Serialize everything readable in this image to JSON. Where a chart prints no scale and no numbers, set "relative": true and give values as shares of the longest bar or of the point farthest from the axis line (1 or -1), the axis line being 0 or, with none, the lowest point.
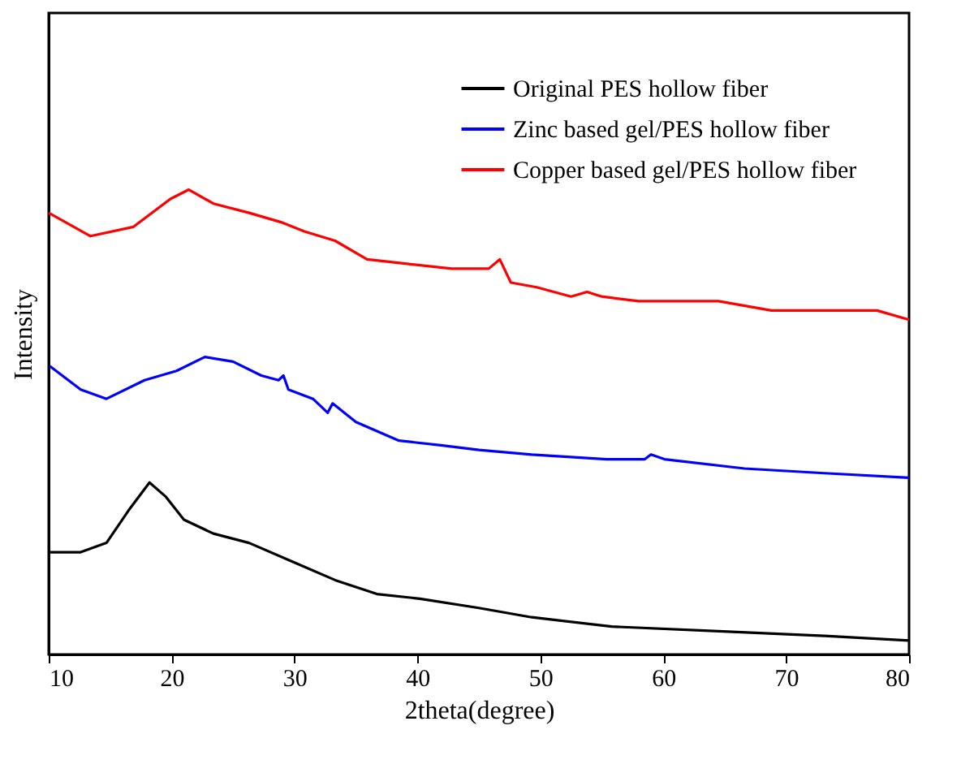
{
  "chart_data": {
    "type": "line",
    "xlabel": "2theta(degree)",
    "ylabel": "Intensity",
    "relative": true,
    "xlim": [
      10,
      80
    ],
    "xticks": [
      10,
      20,
      30,
      40,
      50,
      60,
      70,
      80
    ],
    "legend": "top right",
    "line_style": "solid",
    "series": [
      {
        "name": "Original PES hollow fiber",
        "color": "#000000",
        "x": [
          10.1,
          12.6,
          14.7,
          16.5,
          18.2,
          19.5,
          21,
          23.4,
          26.3,
          29.8,
          33.3,
          36.7,
          40.2,
          45,
          49.3,
          55.8,
          64.5,
          73.1,
          80
        ],
        "values": [
          0.22,
          0.22,
          0.24,
          0.31,
          0.37,
          0.34,
          0.29,
          0.26,
          0.24,
          0.2,
          0.16,
          0.13,
          0.12,
          0.1,
          0.08,
          0.06,
          0.05,
          0.04,
          0.03
        ]
      },
      {
        "name": "Zinc based gel/PES hollow fiber",
        "color": "#0000ff",
        "x": [
          10.1,
          12.6,
          14.7,
          17.8,
          20.4,
          22.7,
          25,
          27.3,
          28.7,
          29.1,
          29.5,
          31.5,
          32.7,
          33.1,
          35,
          38.5,
          41.9,
          45,
          49.3,
          55.4,
          58.5,
          59,
          60.1,
          66.6,
          73.1,
          80
        ],
        "values": [
          0.62,
          0.57,
          0.55,
          0.59,
          0.61,
          0.64,
          0.63,
          0.6,
          0.59,
          0.6,
          0.57,
          0.55,
          0.52,
          0.54,
          0.5,
          0.46,
          0.45,
          0.44,
          0.43,
          0.42,
          0.42,
          0.43,
          0.42,
          0.4,
          0.39,
          0.38
        ]
      },
      {
        "name": "Copper based gel/PES hollow fiber",
        "color": "#ff0000",
        "x": [
          10,
          13.4,
          16.9,
          19.9,
          21.4,
          23.4,
          26.3,
          28.9,
          30.8,
          33.3,
          35.9,
          39.3,
          42.8,
          45.8,
          46.7,
          47.6,
          49.7,
          52.5,
          53.8,
          55,
          58,
          64.5,
          68.8,
          73.1,
          77.4,
          80
        ],
        "values": [
          0.95,
          0.9,
          0.92,
          0.98,
          1,
          0.97,
          0.95,
          0.93,
          0.91,
          0.89,
          0.85,
          0.84,
          0.83,
          0.83,
          0.85,
          0.8,
          0.79,
          0.77,
          0.78,
          0.77,
          0.76,
          0.76,
          0.74,
          0.74,
          0.74,
          0.72
        ]
      }
    ]
  }
}
